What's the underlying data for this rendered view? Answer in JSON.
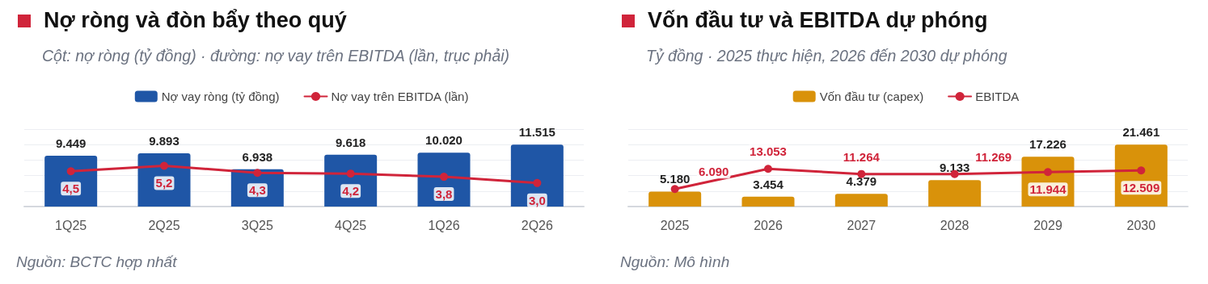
{
  "chart_data": [
    {
      "type": "bar",
      "title": "Nợ ròng và đòn bẩy theo quý",
      "subtitle": "Cột: nợ ròng (tỷ đồng) · đường: nợ vay trên EBITDA (lần, trục phải)",
      "annotations": [
        "Nguồn: BCTC hợp nhất"
      ],
      "categories": [
        "1Q25",
        "2Q25",
        "3Q25",
        "4Q25",
        "1Q26",
        "2Q26"
      ],
      "legend": "top",
      "grid": "y",
      "marker": "circle",
      "series": [
        {
          "name": "Nợ vay ròng (tỷ đồng)",
          "color": "#1f56a6",
          "values": [
            9449,
            9893,
            6938,
            9618,
            10020,
            11515
          ],
          "value_labels": [
            "9.449",
            "9.893",
            "6.938",
            "9.618",
            "10.020",
            "11.515"
          ]
        },
        {
          "name": "Nợ vay trên EBITDA (lần)",
          "type": "line",
          "axis": "y2",
          "color": "#d0243a",
          "values": [
            4.5,
            5.2,
            4.3,
            4.2,
            3.8,
            3.0
          ],
          "value_labels": [
            "4,5",
            "5,2",
            "4,3",
            "4,2",
            "3,8",
            "3,0"
          ]
        }
      ]
    },
    {
      "type": "bar",
      "title": "Vốn đầu tư và EBITDA dự phóng",
      "subtitle": "Tỷ đồng · 2025 thực hiện, 2026 đến 2030 dự phóng",
      "annotations": [
        "Nguồn: Mô hình"
      ],
      "categories": [
        "2025",
        "2026",
        "2027",
        "2028",
        "2029",
        "2030"
      ],
      "legend": "top",
      "grid": "y",
      "marker": "circle",
      "series": [
        {
          "name": "Vốn đầu tư (capex)",
          "color": "#d9920a",
          "values": [
            5180,
            3454,
            4379,
            9133,
            17226,
            21461
          ],
          "value_labels": [
            "5.180",
            "3.454",
            "4.379",
            "9.133",
            "17.226",
            "21.461"
          ]
        },
        {
          "name": "EBITDA",
          "type": "line",
          "color": "#d0243a",
          "values": [
            6090,
            13053,
            11264,
            11269,
            11944,
            12509
          ],
          "value_labels": [
            "6.090",
            "13.053",
            "11.264",
            "11.269",
            "11.944",
            "12.509"
          ]
        }
      ]
    }
  ]
}
